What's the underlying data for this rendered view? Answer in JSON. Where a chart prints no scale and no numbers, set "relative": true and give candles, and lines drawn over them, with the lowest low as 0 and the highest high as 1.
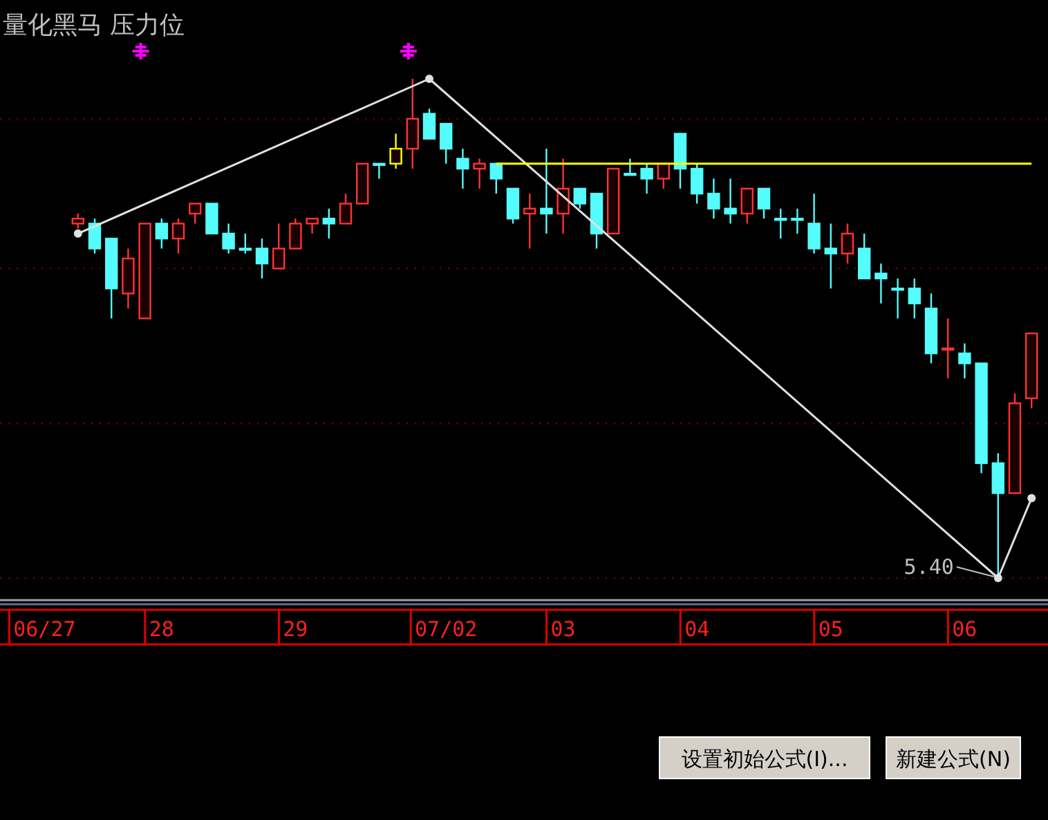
{
  "chart_data": {
    "type": "candlestick",
    "title": "量化黑马 压力位",
    "relative": true,
    "ref_lines": [
      {
        "axis": "y",
        "value": 0,
        "color": "#8a0000",
        "line_style": "dotted"
      },
      {
        "axis": "y",
        "value": 0.31,
        "color": "#8a0000",
        "line_style": "dotted"
      },
      {
        "axis": "y",
        "value": 0.62,
        "color": "#8a0000",
        "line_style": "dotted"
      },
      {
        "axis": "y",
        "value": 0.92,
        "color": "#8a0000",
        "line_style": "dotted"
      }
    ],
    "categories": [
      null,
      null,
      "06/27",
      null,
      null,
      null,
      null,
      null,
      null,
      "28",
      null,
      null,
      null,
      null,
      null,
      null,
      null,
      "29",
      null,
      null,
      null,
      null,
      null,
      null,
      null,
      null,
      "07/02",
      null,
      null,
      null,
      null,
      null,
      null,
      "03",
      null,
      null,
      null,
      null,
      null,
      null,
      null,
      "04",
      null,
      null,
      null,
      null,
      null,
      null,
      null,
      "05",
      null,
      null,
      null,
      null,
      null,
      null,
      null,
      "06",
      null,
      null,
      null,
      null
    ],
    "ohlc": [
      null,
      null,
      null,
      null,
      [
        0.71,
        0.73,
        0.7,
        0.72
      ],
      [
        0.71,
        0.72,
        0.65,
        0.66
      ],
      [
        0.68,
        0.68,
        0.52,
        0.58
      ],
      [
        0.57,
        0.66,
        0.54,
        0.64
      ],
      [
        0.52,
        0.71,
        0.52,
        0.71
      ],
      [
        0.71,
        0.72,
        0.66,
        0.68
      ],
      [
        0.68,
        0.72,
        0.65,
        0.71
      ],
      [
        0.73,
        0.75,
        0.71,
        0.75
      ],
      [
        0.75,
        0.75,
        0.69,
        0.69
      ],
      [
        0.69,
        0.71,
        0.65,
        0.66
      ],
      [
        0.66,
        0.69,
        0.65,
        0.66
      ],
      [
        0.66,
        0.68,
        0.6,
        0.63
      ],
      [
        0.62,
        0.71,
        0.62,
        0.66
      ],
      [
        0.66,
        0.72,
        0.66,
        0.71
      ],
      [
        0.71,
        0.72,
        0.69,
        0.72
      ],
      [
        0.72,
        0.74,
        0.68,
        0.71
      ],
      [
        0.71,
        0.77,
        0.71,
        0.75
      ],
      [
        0.75,
        0.83,
        0.75,
        0.83
      ],
      [
        0.83,
        0.83,
        0.8,
        0.83
      ],
      [
        0.83,
        0.89,
        0.82,
        0.86
      ],
      [
        0.86,
        1.0,
        0.82,
        0.92
      ],
      [
        0.93,
        0.94,
        0.88,
        0.88
      ],
      [
        0.91,
        0.91,
        0.83,
        0.86
      ],
      [
        0.84,
        0.86,
        0.78,
        0.82
      ],
      [
        0.82,
        0.84,
        0.78,
        0.83
      ],
      [
        0.83,
        0.83,
        0.77,
        0.8
      ],
      [
        0.78,
        0.78,
        0.71,
        0.72
      ],
      [
        0.73,
        0.77,
        0.66,
        0.74
      ],
      [
        0.74,
        0.86,
        0.69,
        0.73
      ],
      [
        0.73,
        0.84,
        0.69,
        0.78
      ],
      [
        0.78,
        0.78,
        0.74,
        0.75
      ],
      [
        0.77,
        0.77,
        0.66,
        0.69
      ],
      [
        0.69,
        0.82,
        0.69,
        0.82
      ],
      [
        0.81,
        0.84,
        0.81,
        0.81
      ],
      [
        0.82,
        0.83,
        0.77,
        0.8
      ],
      [
        0.8,
        0.83,
        0.78,
        0.83
      ],
      [
        0.89,
        0.89,
        0.78,
        0.82
      ],
      [
        0.82,
        0.83,
        0.75,
        0.77
      ],
      [
        0.77,
        0.8,
        0.72,
        0.74
      ],
      [
        0.74,
        0.8,
        0.71,
        0.73
      ],
      [
        0.73,
        0.78,
        0.71,
        0.78
      ],
      [
        0.78,
        0.78,
        0.72,
        0.74
      ],
      [
        0.72,
        0.74,
        0.68,
        0.72
      ],
      [
        0.72,
        0.74,
        0.69,
        0.72
      ],
      [
        0.71,
        0.77,
        0.65,
        0.66
      ],
      [
        0.66,
        0.71,
        0.58,
        0.65
      ],
      [
        0.65,
        0.71,
        0.63,
        0.69
      ],
      [
        0.66,
        0.69,
        0.6,
        0.6
      ],
      [
        0.61,
        0.63,
        0.55,
        0.6
      ],
      [
        0.58,
        0.6,
        0.52,
        0.58
      ],
      [
        0.58,
        0.6,
        0.52,
        0.55
      ],
      [
        0.54,
        0.57,
        0.43,
        0.45
      ],
      [
        0.46,
        0.52,
        0.4,
        0.46
      ],
      [
        0.45,
        0.47,
        0.4,
        0.43
      ],
      [
        0.43,
        0.43,
        0.21,
        0.23
      ],
      [
        0.23,
        0.25,
        0,
        0.17
      ],
      [
        0.17,
        0.37,
        0.17,
        0.35
      ],
      [
        0.36,
        0.49,
        0.34,
        0.49
      ]
    ],
    "colors": [
      null,
      null,
      null,
      null,
      "#ff3232",
      "#54fcfc",
      "#54fcfc",
      "#ff3232",
      "#ff3232",
      "#54fcfc",
      "#ff3232",
      "#ff3232",
      "#54fcfc",
      "#54fcfc",
      "#54fcfc",
      "#54fcfc",
      "#ff3232",
      "#ff3232",
      "#ff3232",
      "#54fcfc",
      "#ff3232",
      "#ff3232",
      "#54fcfc",
      "#ffff00",
      "#ff3232",
      "#54fcfc",
      "#54fcfc",
      "#54fcfc",
      "#ff3232",
      "#54fcfc",
      "#54fcfc",
      "#ff3232",
      "#54fcfc",
      "#ff3232",
      "#54fcfc",
      "#54fcfc",
      "#ff3232",
      "#54fcfc",
      "#54fcfc",
      "#ff3232",
      "#54fcfc",
      "#54fcfc",
      "#54fcfc",
      "#54fcfc",
      "#ff3232",
      "#54fcfc",
      "#54fcfc",
      "#54fcfc",
      "#54fcfc",
      "#54fcfc",
      "#ff3232",
      "#54fcfc",
      "#54fcfc",
      "#54fcfc",
      "#54fcfc",
      "#54fcfc",
      "#ff3232",
      "#54fcfc",
      "#54fcfc",
      "#54fcfc",
      "#ff3232",
      "#ff3232"
    ],
    "series": [
      {
        "type": "line",
        "color": "#e0e0e0",
        "marker": "circle",
        "values": [
          null,
          null,
          null,
          null,
          0.69,
          null,
          null,
          null,
          null,
          null,
          null,
          null,
          null,
          null,
          null,
          null,
          null,
          null,
          null,
          null,
          null,
          null,
          null,
          null,
          null,
          1.0,
          null,
          null,
          null,
          null,
          null,
          null,
          null,
          null,
          null,
          null,
          null,
          null,
          null,
          null,
          null,
          null,
          null,
          null,
          null,
          null,
          null,
          null,
          null,
          null,
          null,
          null,
          null,
          null,
          null,
          null,
          null,
          null,
          null,
          0,
          null,
          0.16
        ]
      },
      {
        "type": "line",
        "color": "#ffff00",
        "values": [
          null,
          null,
          null,
          null,
          null,
          null,
          null,
          null,
          null,
          null,
          null,
          null,
          null,
          null,
          null,
          null,
          null,
          null,
          null,
          null,
          null,
          null,
          null,
          null,
          null,
          null,
          null,
          null,
          null,
          0.83,
          0.83,
          0.83,
          0.83,
          0.83,
          0.83,
          0.83,
          0.83,
          0.83,
          0.83,
          0.83,
          0.83,
          0.83,
          0.83,
          0.83,
          0.83,
          0.83,
          0.83,
          0.83,
          0.83,
          0.83,
          0.83,
          0.83,
          0.83,
          0.83,
          0.83,
          0.83,
          0.83,
          0.83,
          0.83,
          0.83,
          0.83,
          0.83
        ]
      }
    ],
    "annotations": [
      "5.40",
      "设置初始公式(I)...",
      "新建公式(N)"
    ]
  }
}
